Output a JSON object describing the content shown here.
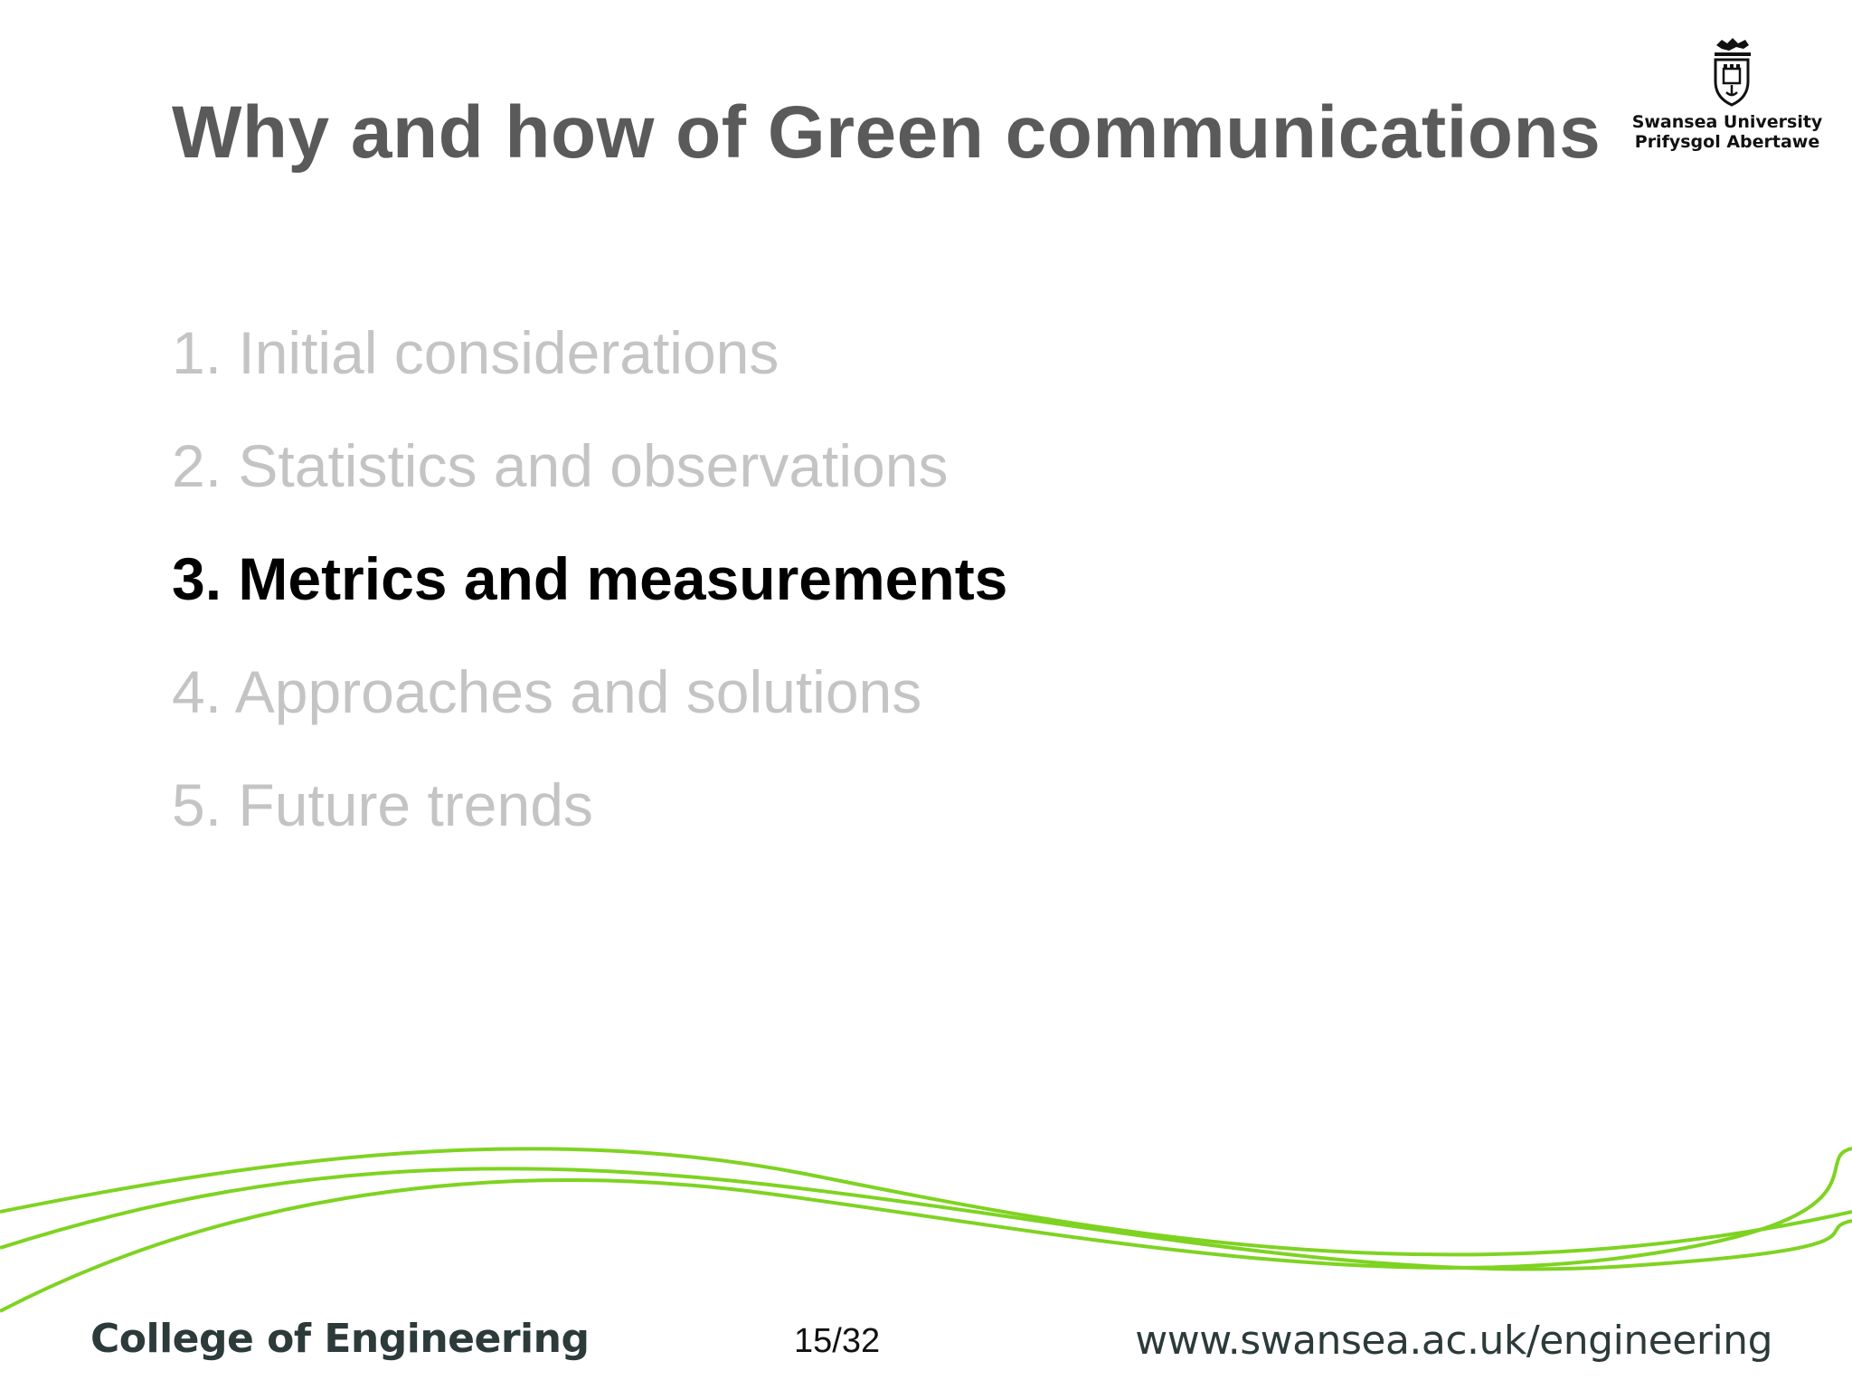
{
  "slide": {
    "title": "Why and how of Green communications",
    "logo": {
      "icon": "university-crest-icon",
      "line1": "Swansea University",
      "line2": "Prifysgol Abertawe"
    },
    "agenda": [
      {
        "label": "1. Initial considerations",
        "active": false
      },
      {
        "label": "2. Statistics and observations",
        "active": false
      },
      {
        "label": "3. Metrics and measurements",
        "active": true
      },
      {
        "label": "4. Approaches and solutions",
        "active": false
      },
      {
        "label": "5. Future trends",
        "active": false
      }
    ],
    "footer": {
      "college": "College of Engineering",
      "page": "15/32",
      "url": "www.swansea.ac.uk/engineering"
    }
  },
  "colors": {
    "title": "#5a5a5a",
    "inactive_item": "#c4c4c4",
    "active_item": "#000000",
    "wave": "#7ed321",
    "footer_text": "#2c3a3a"
  }
}
